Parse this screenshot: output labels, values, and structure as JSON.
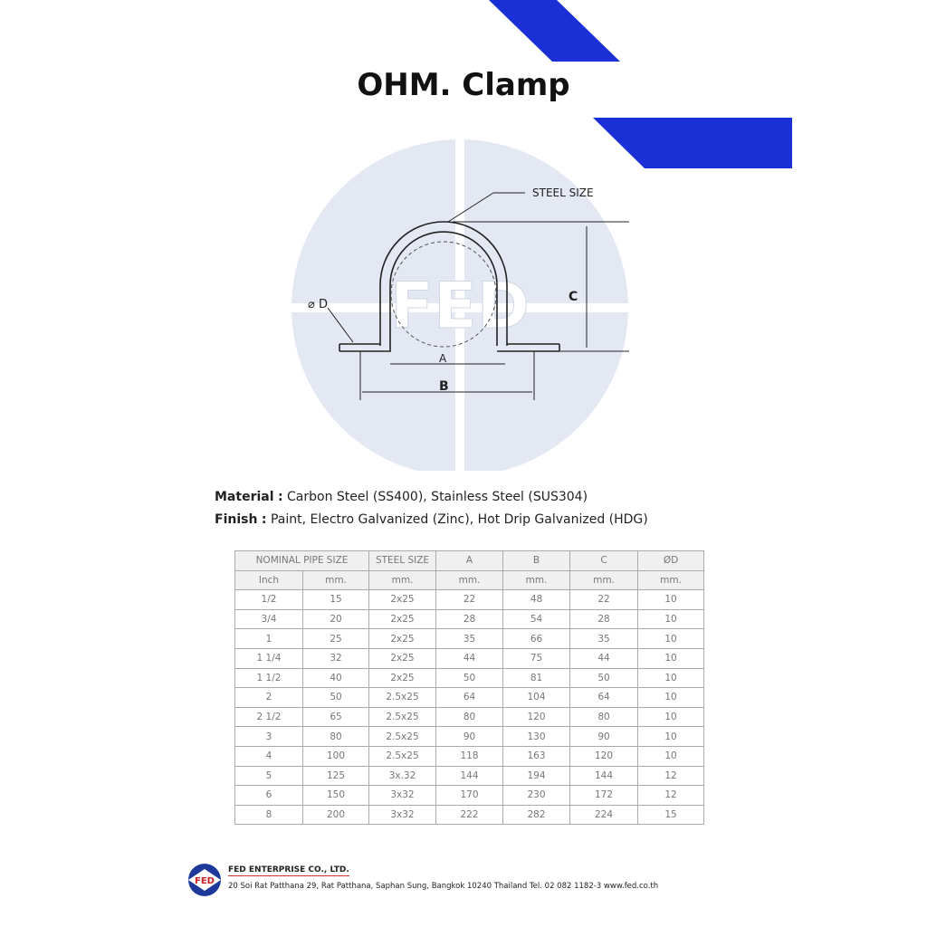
{
  "title": "OHM. Clamp",
  "colors": {
    "accent": "#1a2fd6",
    "watermark": "#e3e8f2"
  },
  "diagram": {
    "steel_size": "STEEL SIZE",
    "d": "⌀ D",
    "a": "A",
    "b": "B",
    "c": "C",
    "watermark": "FED"
  },
  "specs": {
    "material_label": "Material",
    "material_value": "Carbon Steel (SS400), Stainless Steel (SUS304)",
    "finish_label": "Finish",
    "finish_value": "Paint, Electro Galvanized (Zinc), Hot Drip Galvanized (HDG)",
    "sep": ":"
  },
  "table": {
    "header1": [
      "NOMINAL PIPE SIZE",
      "STEEL SIZE",
      "A",
      "B",
      "C",
      "ØD"
    ],
    "header2": [
      "Inch",
      "mm.",
      "mm.",
      "mm.",
      "mm.",
      "mm.",
      "mm."
    ],
    "rows": [
      [
        "1/2",
        "15",
        "2x25",
        "22",
        "48",
        "22",
        "10"
      ],
      [
        "3/4",
        "20",
        "2x25",
        "28",
        "54",
        "28",
        "10"
      ],
      [
        "1",
        "25",
        "2x25",
        "35",
        "66",
        "35",
        "10"
      ],
      [
        "1 1/4",
        "32",
        "2x25",
        "44",
        "75",
        "44",
        "10"
      ],
      [
        "1 1/2",
        "40",
        "2x25",
        "50",
        "81",
        "50",
        "10"
      ],
      [
        "2",
        "50",
        "2.5x25",
        "64",
        "104",
        "64",
        "10"
      ],
      [
        "2 1/2",
        "65",
        "2.5x25",
        "80",
        "120",
        "80",
        "10"
      ],
      [
        "3",
        "80",
        "2.5x25",
        "90",
        "130",
        "90",
        "10"
      ],
      [
        "4",
        "100",
        "2.5x25",
        "118",
        "163",
        "120",
        "10"
      ],
      [
        "5",
        "125",
        "3x.32",
        "144",
        "194",
        "144",
        "12"
      ],
      [
        "6",
        "150",
        "3x32",
        "170",
        "230",
        "172",
        "12"
      ],
      [
        "8",
        "200",
        "3x32",
        "222",
        "282",
        "224",
        "15"
      ]
    ]
  },
  "footer": {
    "logo": "FED",
    "company": "FED ENTERPRISE CO., LTD.",
    "address": "20 Soi Rat Patthana 29, Rat Patthana, Saphan Sung, Bangkok 10240 Thailand  Tel. 02 082 1182-3 www.fed.co.th"
  }
}
